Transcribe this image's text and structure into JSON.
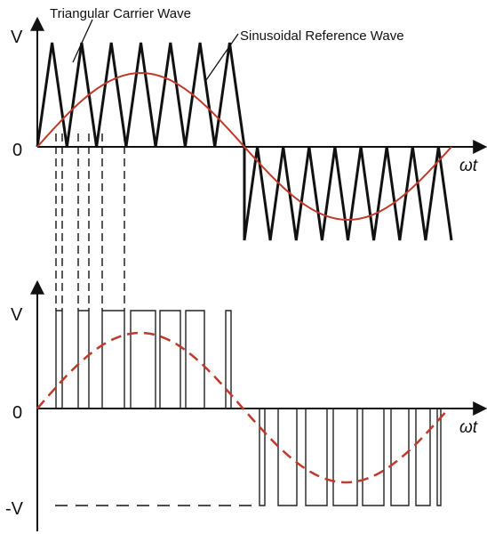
{
  "labels": {
    "carrier": "Triangular Carrier Wave",
    "reference": "Sinusoidal Reference Wave",
    "top_v": "V",
    "top_zero": "0",
    "top_wt": "ωt",
    "bottom_v": "V",
    "bottom_zero": "0",
    "bottom_neg_v": "-V",
    "bottom_wt": "ωt"
  },
  "colors": {
    "carrier": "#111111",
    "reference": "#c0392b",
    "pulses": "#222222",
    "axes": "#111111"
  },
  "icons": {
    "axis_arrow": "arrow-head-icon"
  }
}
